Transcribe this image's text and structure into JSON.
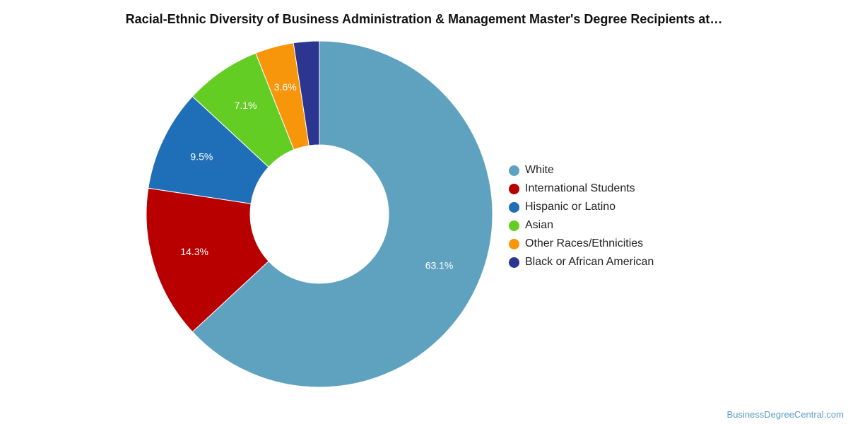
{
  "chart_data": {
    "type": "pie",
    "title": "Racial-Ethnic Diversity of Business Administration & Management Master's Degree Recipients at…",
    "categories": [
      "White",
      "International Students",
      "Hispanic or Latino",
      "Asian",
      "Other Races/Ethnicities",
      "Black or African American"
    ],
    "values": [
      63.1,
      14.3,
      9.5,
      7.1,
      3.6,
      2.4
    ],
    "value_labels": [
      "63.1%",
      "14.3%",
      "9.5%",
      "7.1%",
      "3.6%",
      ""
    ],
    "colors": [
      "#5fa2bf",
      "#b80000",
      "#1f6fb8",
      "#64cd23",
      "#f7950b",
      "#2c3590"
    ],
    "legend_position": "right"
  },
  "watermark": "BusinessDegreeCentral.com"
}
